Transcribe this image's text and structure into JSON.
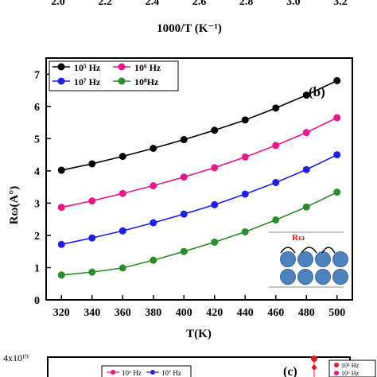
{
  "top_strip": {
    "tick_labels": [
      "2.0",
      "2.2",
      "2.4",
      "2.6",
      "2.8",
      "3.0",
      "3.2"
    ],
    "xlabel": "1000/T (K⁻¹)"
  },
  "chart_data": [
    {
      "type": "line",
      "panel_label": "(b)",
      "xlabel": "T(K)",
      "ylabel": "Rω(A°)",
      "xlim": [
        310,
        510
      ],
      "ylim": [
        0,
        7.5
      ],
      "xticks": [
        320,
        340,
        360,
        380,
        400,
        420,
        440,
        460,
        480,
        500
      ],
      "yticks": [
        0,
        1,
        2,
        3,
        4,
        5,
        6,
        7
      ],
      "grid": false,
      "legend_placement": "top-left",
      "x": [
        320,
        340,
        360,
        380,
        400,
        420,
        440,
        460,
        480,
        500
      ],
      "series": [
        {
          "name": "10⁵ Hz",
          "color": "#000000",
          "values": [
            4.02,
            4.22,
            4.45,
            4.7,
            4.97,
            5.26,
            5.58,
            5.95,
            6.35,
            6.8
          ]
        },
        {
          "name": "10⁶ Hz",
          "color": "#e8178a",
          "values": [
            2.87,
            3.07,
            3.3,
            3.54,
            3.81,
            4.1,
            4.43,
            4.79,
            5.19,
            5.65
          ]
        },
        {
          "name": "10⁷ Hz",
          "color": "#1f1fe6",
          "values": [
            1.72,
            1.92,
            2.14,
            2.39,
            2.66,
            2.95,
            3.28,
            3.64,
            4.04,
            4.5
          ]
        },
        {
          "name": "10⁸Hz",
          "color": "#2a8c2a",
          "values": [
            0.77,
            0.86,
            0.99,
            1.23,
            1.5,
            1.79,
            2.11,
            2.48,
            2.88,
            3.34
          ]
        }
      ],
      "inset": {
        "label": "Rω",
        "label_color": "#d92020",
        "ball_color": "#4f81bd"
      }
    },
    {
      "type": "line",
      "panel_label": "(c)",
      "y_tick_label": "4x10¹⁹",
      "legend_entries": [
        "10⁵ Hz",
        "10⁶ Hz"
      ],
      "inner_legend_entries": [
        "10⁶ Hz",
        "10⁷ Hz"
      ]
    }
  ]
}
